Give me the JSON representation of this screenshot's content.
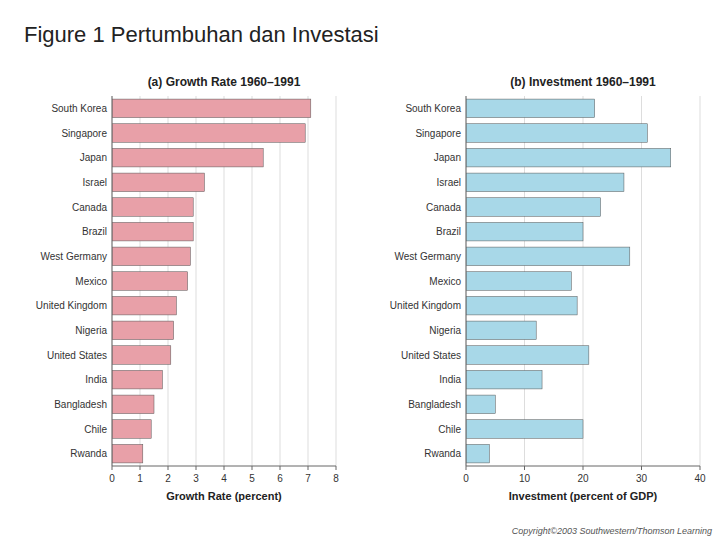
{
  "title": "Figure 1 Pertumbuhan dan Investasi",
  "annotation": "Copyright©2003  Southwestern/Thomson Learning",
  "chart_data": [
    {
      "type": "bar",
      "orientation": "horizontal",
      "title": "(a) Growth Rate 1960–1991",
      "xlabel": "Growth Rate (percent)",
      "categories": [
        "South Korea",
        "Singapore",
        "Japan",
        "Israel",
        "Canada",
        "Brazil",
        "West Germany",
        "Mexico",
        "United Kingdom",
        "Nigeria",
        "United States",
        "India",
        "Bangladesh",
        "Chile",
        "Rwanda"
      ],
      "values": [
        7.1,
        6.9,
        5.4,
        3.3,
        2.9,
        2.9,
        2.8,
        2.7,
        2.3,
        2.2,
        2.1,
        1.8,
        1.5,
        1.4,
        1.1
      ],
      "color": "#e8a0a8",
      "xlim": [
        0,
        8
      ],
      "xticks": [
        0,
        1,
        2,
        3,
        4,
        5,
        6,
        7,
        8
      ],
      "grid": true
    },
    {
      "type": "bar",
      "orientation": "horizontal",
      "title": "(b) Investment 1960–1991",
      "xlabel": "Investment (percent of GDP)",
      "categories": [
        "South Korea",
        "Singapore",
        "Japan",
        "Israel",
        "Canada",
        "Brazil",
        "West Germany",
        "Mexico",
        "United Kingdom",
        "Nigeria",
        "United States",
        "India",
        "Bangladesh",
        "Chile",
        "Rwanda"
      ],
      "values": [
        22,
        31,
        35,
        27,
        23,
        20,
        28,
        18,
        19,
        12,
        21,
        13,
        5,
        20,
        4
      ],
      "color": "#a8d8e8",
      "xlim": [
        0,
        40
      ],
      "xticks": [
        0,
        10,
        20,
        30,
        40
      ],
      "grid": true
    }
  ]
}
